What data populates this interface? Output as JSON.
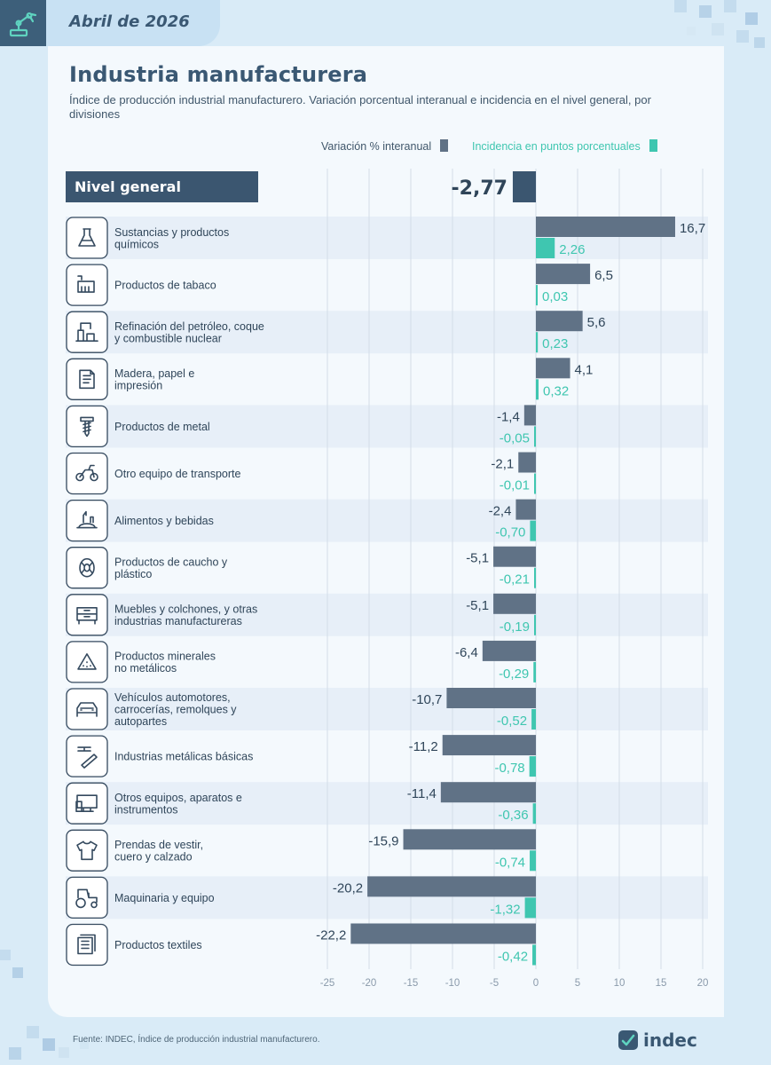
{
  "header": {
    "date": "Abril de 2026"
  },
  "title": "Industria manufacturera",
  "subtitle": "Índice de producción industrial manufacturero. Variación porcentual interanual e incidencia en el nivel general, por divisiones",
  "colors": {
    "variation": "#607286",
    "incidence": "#3fc6b0",
    "general": "#3b5670",
    "row_band": "#e7eff8",
    "axis_text": "#8a9aab"
  },
  "chart_data": {
    "type": "bar",
    "orientation": "horizontal",
    "legend": [
      {
        "name": "Variación % interanual",
        "color": "#607286"
      },
      {
        "name": "Incidencia en puntos porcentuales",
        "color": "#3fc6b0"
      }
    ],
    "general": {
      "label": "Nivel general",
      "value": -2.77,
      "value_text": "-2,77"
    },
    "xlim": [
      -25,
      20
    ],
    "xticks": [
      -25,
      -20,
      -15,
      -10,
      -5,
      0,
      5,
      10,
      15,
      20
    ],
    "xtick_labels": [
      "-25",
      "-20",
      "-15",
      "-10",
      "-5",
      "0",
      "5",
      "10",
      "15",
      "20"
    ],
    "grid": true,
    "categories": [
      {
        "label": "Sustancias y productos químicos",
        "lines": [
          "Sustancias y productos",
          "químicos"
        ],
        "icon": "flask-icon",
        "variation": 16.7,
        "variation_text": "16,7",
        "incidence": 2.26,
        "incidence_text": "2,26"
      },
      {
        "label": "Productos de tabaco",
        "lines": [
          "Productos de tabaco"
        ],
        "icon": "cigarette-icon",
        "variation": 6.5,
        "variation_text": "6,5",
        "incidence": 0.03,
        "incidence_text": "0,03"
      },
      {
        "label": "Refinación del petróleo, coque y combustible nuclear",
        "lines": [
          "Refinación del petróleo, coque",
          "y combustible nuclear"
        ],
        "icon": "refinery-icon",
        "variation": 5.6,
        "variation_text": "5,6",
        "incidence": 0.23,
        "incidence_text": "0,23"
      },
      {
        "label": "Madera, papel e impresión",
        "lines": [
          "Madera, papel e",
          "impresión"
        ],
        "icon": "paper-icon",
        "variation": 4.1,
        "variation_text": "4,1",
        "incidence": 0.32,
        "incidence_text": "0,32"
      },
      {
        "label": "Productos de metal",
        "lines": [
          "Productos de metal"
        ],
        "icon": "screw-icon",
        "variation": -1.4,
        "variation_text": "-1,4",
        "incidence": -0.05,
        "incidence_text": "-0,05"
      },
      {
        "label": "Otro equipo de transporte",
        "lines": [
          "Otro equipo de transporte"
        ],
        "icon": "motorcycle-icon",
        "variation": -2.1,
        "variation_text": "-2,1",
        "incidence": -0.01,
        "incidence_text": "-0,01"
      },
      {
        "label": "Alimentos y bebidas",
        "lines": [
          "Alimentos y bebidas"
        ],
        "icon": "food-icon",
        "variation": -2.4,
        "variation_text": "-2,4",
        "incidence": -0.7,
        "incidence_text": "-0,70"
      },
      {
        "label": "Productos de caucho y plástico",
        "lines": [
          "Productos de caucho y",
          "plástico"
        ],
        "icon": "tire-icon",
        "variation": -5.1,
        "variation_text": "-5,1",
        "incidence": -0.21,
        "incidence_text": "-0,21"
      },
      {
        "label": "Muebles y colchones, y otras industrias manufactureras",
        "lines": [
          "Muebles y colchones, y otras",
          "industrias manufactureras"
        ],
        "icon": "furniture-icon",
        "variation": -5.1,
        "variation_text": "-5,1",
        "incidence": -0.19,
        "incidence_text": "-0,19"
      },
      {
        "label": "Productos minerales no metálicos",
        "lines": [
          "Productos minerales",
          "no metálicos"
        ],
        "icon": "minerals-icon",
        "variation": -6.4,
        "variation_text": "-6,4",
        "incidence": -0.29,
        "incidence_text": "-0,29"
      },
      {
        "label": "Vehículos automotores, carrocerías, remolques y autopartes",
        "lines": [
          "Vehículos automotores,",
          "carrocerías, remolques y",
          "autopartes"
        ],
        "icon": "car-icon",
        "variation": -10.7,
        "variation_text": "-10,7",
        "incidence": -0.52,
        "incidence_text": "-0,52"
      },
      {
        "label": "Industrias metálicas básicas",
        "lines": [
          "Industrias metálicas básicas"
        ],
        "icon": "metal-beam-icon",
        "variation": -11.2,
        "variation_text": "-11,2",
        "incidence": -0.78,
        "incidence_text": "-0,78"
      },
      {
        "label": "Otros equipos, aparatos e instrumentos",
        "lines": [
          "Otros equipos, aparatos e",
          "instrumentos"
        ],
        "icon": "computer-icon",
        "variation": -11.4,
        "variation_text": "-11,4",
        "incidence": -0.36,
        "incidence_text": "-0,36"
      },
      {
        "label": "Prendas de vestir, cuero y calzado",
        "lines": [
          "Prendas de vestir,",
          "cuero y calzado"
        ],
        "icon": "tshirt-icon",
        "variation": -15.9,
        "variation_text": "-15,9",
        "incidence": -0.74,
        "incidence_text": "-0,74"
      },
      {
        "label": "Maquinaria y equipo",
        "lines": [
          "Maquinaria y equipo"
        ],
        "icon": "tractor-icon",
        "variation": -20.2,
        "variation_text": "-20,2",
        "incidence": -1.32,
        "incidence_text": "-1,32"
      },
      {
        "label": "Productos textiles",
        "lines": [
          "Productos textiles"
        ],
        "icon": "textile-icon",
        "variation": -22.2,
        "variation_text": "-22,2",
        "incidence": -0.42,
        "incidence_text": "-0,42"
      }
    ]
  },
  "footer": {
    "source": "Fuente: INDEC, Índice de producción industrial manufacturero.",
    "logo_text": "indec"
  }
}
